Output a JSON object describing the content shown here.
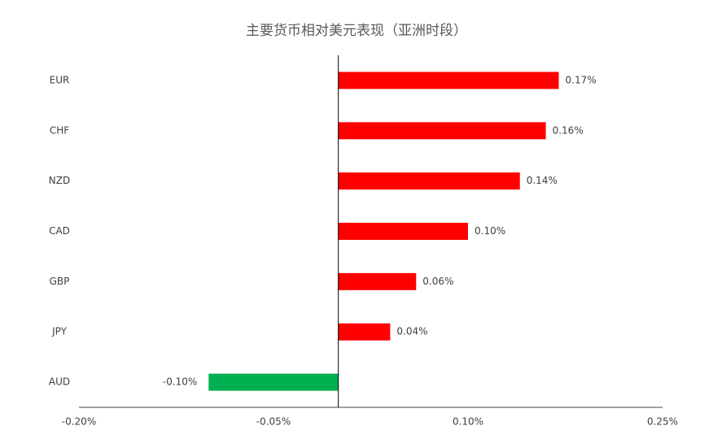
{
  "chart_data": {
    "type": "bar",
    "orientation": "horizontal",
    "title": "主要货币相对美元表现（亚洲时段）",
    "categories": [
      "EUR",
      "CHF",
      "NZD",
      "CAD",
      "GBP",
      "JPY",
      "AUD"
    ],
    "values": [
      0.17,
      0.16,
      0.14,
      0.1,
      0.06,
      0.04,
      -0.1
    ],
    "value_labels": [
      "0.17%",
      "0.16%",
      "0.14%",
      "0.10%",
      "0.06%",
      "0.04%",
      "-0.10%"
    ],
    "colors": [
      "#ff0000",
      "#ff0000",
      "#ff0000",
      "#ff0000",
      "#ff0000",
      "#ff0000",
      "#00b050"
    ],
    "xlim": [
      -0.2,
      0.25
    ],
    "xticks": [
      {
        "value": -0.2,
        "label": "-0.20%"
      },
      {
        "value": -0.05,
        "label": "-0.05%"
      },
      {
        "value": 0.1,
        "label": "0.10%"
      },
      {
        "value": 0.25,
        "label": "0.25%"
      }
    ],
    "grid": false
  }
}
